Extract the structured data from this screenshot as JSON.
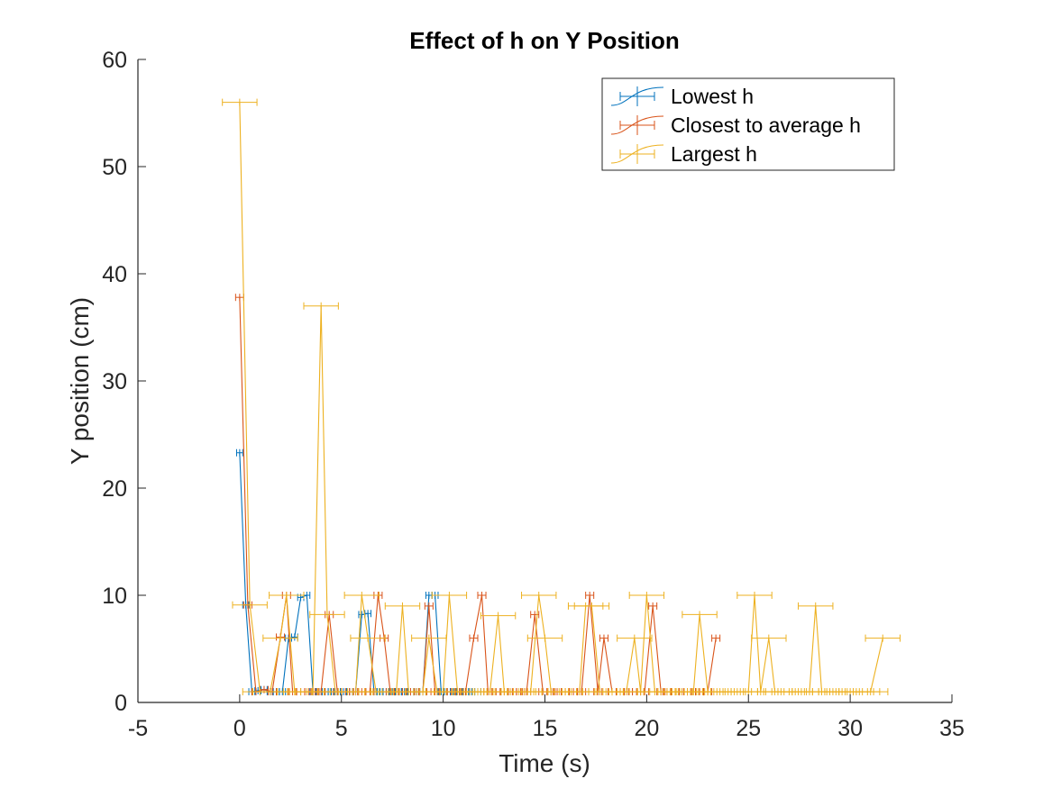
{
  "chart_data": {
    "type": "line",
    "title": "Effect of h on  Y Position",
    "xlabel": "Time (s)",
    "ylabel": "Y position (cm)",
    "xlim": [
      -5,
      35
    ],
    "ylim": [
      0,
      60
    ],
    "xticks": [
      -5,
      0,
      5,
      10,
      15,
      20,
      25,
      30,
      35
    ],
    "yticks": [
      0,
      10,
      20,
      30,
      40,
      50,
      60
    ],
    "grid": false,
    "legend_position": "top-right",
    "error_bars": "horizontal",
    "series": [
      {
        "name": "Lowest h",
        "color": "#0072BD",
        "xerr": 0.15,
        "points": [
          [
            0.0,
            23.3
          ],
          [
            0.3,
            9.1
          ],
          [
            0.6,
            1.0
          ],
          [
            0.9,
            1.1
          ],
          [
            1.2,
            1.2
          ],
          [
            1.5,
            1.0
          ],
          [
            1.8,
            1.0
          ],
          [
            2.1,
            1.0
          ],
          [
            2.4,
            6.0
          ],
          [
            2.7,
            6.1
          ],
          [
            3.0,
            9.8
          ],
          [
            3.3,
            10.0
          ],
          [
            3.6,
            1.0
          ],
          [
            3.9,
            1.0
          ],
          [
            4.2,
            1.0
          ],
          [
            4.5,
            1.0
          ],
          [
            4.8,
            1.0
          ],
          [
            5.1,
            1.0
          ],
          [
            5.4,
            1.0
          ],
          [
            5.7,
            1.0
          ],
          [
            6.0,
            8.2
          ],
          [
            6.3,
            8.3
          ],
          [
            6.6,
            1.0
          ],
          [
            6.9,
            1.0
          ],
          [
            7.2,
            1.0
          ],
          [
            7.5,
            1.0
          ],
          [
            7.8,
            1.0
          ],
          [
            8.1,
            1.0
          ],
          [
            8.4,
            1.0
          ],
          [
            8.7,
            1.0
          ],
          [
            9.0,
            1.0
          ],
          [
            9.3,
            10.0
          ],
          [
            9.6,
            10.0
          ],
          [
            9.9,
            1.0
          ],
          [
            10.2,
            1.0
          ],
          [
            10.5,
            1.0
          ],
          [
            10.8,
            1.0
          ],
          [
            11.1,
            1.0
          ],
          [
            11.4,
            1.0
          ],
          [
            11.7,
            1.0
          ]
        ]
      },
      {
        "name": "Closest to average h",
        "color": "#D95319",
        "xerr": 0.2,
        "points": [
          [
            0.0,
            37.8
          ],
          [
            0.4,
            9.1
          ],
          [
            0.8,
            1.0
          ],
          [
            1.2,
            1.2
          ],
          [
            1.6,
            1.0
          ],
          [
            2.0,
            6.1
          ],
          [
            2.3,
            10.0
          ],
          [
            2.6,
            1.0
          ],
          [
            3.0,
            1.0
          ],
          [
            3.4,
            1.0
          ],
          [
            3.7,
            1.0
          ],
          [
            4.0,
            1.0
          ],
          [
            4.4,
            8.2
          ],
          [
            4.8,
            1.0
          ],
          [
            5.2,
            1.0
          ],
          [
            5.6,
            1.0
          ],
          [
            6.0,
            1.0
          ],
          [
            6.4,
            1.0
          ],
          [
            6.8,
            10.0
          ],
          [
            7.1,
            6.0
          ],
          [
            7.4,
            1.0
          ],
          [
            7.8,
            1.0
          ],
          [
            8.2,
            1.0
          ],
          [
            8.6,
            1.0
          ],
          [
            9.0,
            1.0
          ],
          [
            9.3,
            9.0
          ],
          [
            9.6,
            1.0
          ],
          [
            10.0,
            1.0
          ],
          [
            10.4,
            1.0
          ],
          [
            10.8,
            1.0
          ],
          [
            11.1,
            1.0
          ],
          [
            11.5,
            6.0
          ],
          [
            11.9,
            10.0
          ],
          [
            12.2,
            1.0
          ],
          [
            12.6,
            1.0
          ],
          [
            13.0,
            1.0
          ],
          [
            13.4,
            1.0
          ],
          [
            13.8,
            1.0
          ],
          [
            14.1,
            1.0
          ],
          [
            14.5,
            8.2
          ],
          [
            14.9,
            1.0
          ],
          [
            15.3,
            1.0
          ],
          [
            15.6,
            1.0
          ],
          [
            16.0,
            1.0
          ],
          [
            16.4,
            1.0
          ],
          [
            16.8,
            1.0
          ],
          [
            17.2,
            10.0
          ],
          [
            17.6,
            1.0
          ],
          [
            17.9,
            6.0
          ],
          [
            18.3,
            1.0
          ],
          [
            18.7,
            1.0
          ],
          [
            19.1,
            1.0
          ],
          [
            19.5,
            1.0
          ],
          [
            19.9,
            1.0
          ],
          [
            20.3,
            9.0
          ],
          [
            20.7,
            1.0
          ],
          [
            21.0,
            1.0
          ],
          [
            21.4,
            1.0
          ],
          [
            21.8,
            1.0
          ],
          [
            22.2,
            1.0
          ],
          [
            22.6,
            1.0
          ],
          [
            23.0,
            1.0
          ],
          [
            23.4,
            6.0
          ]
        ]
      },
      {
        "name": "Largest h",
        "color": "#EDB120",
        "xerr": 0.85,
        "points": [
          [
            0.0,
            56.0
          ],
          [
            0.5,
            9.1
          ],
          [
            1.0,
            1.0
          ],
          [
            1.5,
            1.0
          ],
          [
            2.0,
            6.0
          ],
          [
            2.3,
            10.0
          ],
          [
            2.7,
            1.0
          ],
          [
            3.0,
            1.0
          ],
          [
            3.3,
            1.0
          ],
          [
            3.6,
            1.0
          ],
          [
            4.0,
            37.0
          ],
          [
            4.3,
            8.2
          ],
          [
            4.7,
            1.0
          ],
          [
            5.0,
            1.0
          ],
          [
            5.3,
            1.0
          ],
          [
            5.7,
            1.0
          ],
          [
            6.0,
            10.0
          ],
          [
            6.3,
            6.0
          ],
          [
            6.7,
            1.0
          ],
          [
            7.0,
            1.0
          ],
          [
            7.3,
            1.0
          ],
          [
            7.7,
            1.0
          ],
          [
            8.0,
            9.0
          ],
          [
            8.3,
            1.0
          ],
          [
            8.7,
            1.0
          ],
          [
            9.0,
            1.0
          ],
          [
            9.3,
            6.0
          ],
          [
            9.7,
            1.0
          ],
          [
            10.0,
            1.0
          ],
          [
            10.3,
            10.0
          ],
          [
            10.7,
            1.0
          ],
          [
            11.0,
            1.0
          ],
          [
            11.3,
            1.0
          ],
          [
            11.7,
            1.0
          ],
          [
            12.0,
            1.0
          ],
          [
            12.3,
            1.0
          ],
          [
            12.7,
            8.1
          ],
          [
            13.0,
            1.0
          ],
          [
            13.3,
            1.0
          ],
          [
            13.7,
            1.0
          ],
          [
            14.0,
            1.0
          ],
          [
            14.3,
            1.0
          ],
          [
            14.7,
            10.0
          ],
          [
            15.0,
            6.0
          ],
          [
            15.3,
            1.0
          ],
          [
            15.7,
            1.0
          ],
          [
            16.0,
            1.0
          ],
          [
            16.3,
            1.0
          ],
          [
            16.7,
            1.0
          ],
          [
            17.0,
            9.0
          ],
          [
            17.3,
            9.0
          ],
          [
            17.7,
            1.0
          ],
          [
            18.0,
            1.0
          ],
          [
            18.3,
            1.0
          ],
          [
            18.7,
            1.0
          ],
          [
            19.0,
            1.0
          ],
          [
            19.4,
            6.0
          ],
          [
            19.7,
            1.0
          ],
          [
            20.0,
            10.0
          ],
          [
            20.4,
            1.0
          ],
          [
            20.7,
            1.0
          ],
          [
            21.0,
            1.0
          ],
          [
            21.4,
            1.0
          ],
          [
            21.7,
            1.0
          ],
          [
            22.0,
            1.0
          ],
          [
            22.3,
            1.0
          ],
          [
            22.6,
            8.2
          ],
          [
            23.0,
            1.0
          ],
          [
            23.3,
            1.0
          ],
          [
            23.6,
            1.0
          ],
          [
            24.0,
            1.0
          ],
          [
            24.3,
            1.0
          ],
          [
            24.6,
            1.0
          ],
          [
            25.0,
            1.0
          ],
          [
            25.3,
            10.0
          ],
          [
            25.6,
            1.0
          ],
          [
            26.0,
            6.0
          ],
          [
            26.3,
            1.0
          ],
          [
            26.6,
            1.0
          ],
          [
            27.0,
            1.0
          ],
          [
            27.3,
            1.0
          ],
          [
            27.6,
            1.0
          ],
          [
            28.0,
            1.0
          ],
          [
            28.3,
            9.0
          ],
          [
            28.6,
            1.0
          ],
          [
            29.0,
            1.0
          ],
          [
            29.3,
            1.0
          ],
          [
            29.6,
            1.0
          ],
          [
            30.0,
            1.0
          ],
          [
            30.3,
            1.0
          ],
          [
            30.6,
            1.0
          ],
          [
            31.0,
            1.0
          ],
          [
            31.6,
            6.0
          ]
        ]
      }
    ]
  }
}
